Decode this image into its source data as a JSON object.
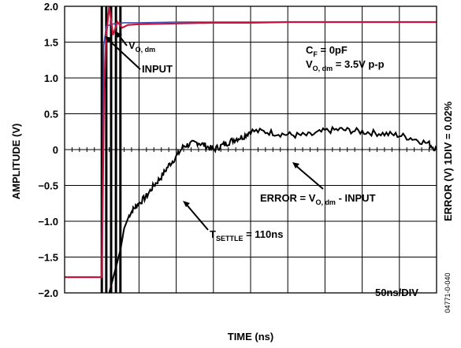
{
  "chart_data": {
    "type": "line",
    "xlabel": "TIME (ns)",
    "ylabel": "AMPLITUDE (V)",
    "y2label": "ERROR (V) 1DIV = 0.02%",
    "ylim": [
      -2.0,
      2.0
    ],
    "x_divisions": 10,
    "x_scale_label": "50ns/DIV",
    "yticks": [
      "2.0",
      "1.5",
      "1.0",
      "0.5",
      "0",
      "−0.5",
      "−1.0",
      "−1.5",
      "−2.0"
    ],
    "grid": true,
    "colors": {
      "input": "#3a4fb0",
      "vo": "#c8143c",
      "error": "#000000",
      "grid": "#000000"
    },
    "series": [
      {
        "name": "INPUT",
        "x_div": [
          0,
          0.8,
          1.0,
          1.05,
          1.12,
          1.25,
          1.4,
          1.6,
          2.0,
          3,
          4,
          5,
          6,
          7,
          8,
          9,
          10
        ],
        "values": [
          -1.78,
          -1.78,
          -1.78,
          1.45,
          1.72,
          1.75,
          1.76,
          1.77,
          1.77,
          1.78,
          1.78,
          1.78,
          1.78,
          1.78,
          1.78,
          1.78,
          1.78
        ]
      },
      {
        "name": "V_O,dm",
        "x_div": [
          0,
          0.8,
          1.0,
          1.06,
          1.12,
          1.2,
          1.3,
          1.42,
          1.55,
          1.7,
          2.0,
          3,
          4,
          5,
          6,
          7,
          8,
          9,
          10
        ],
        "values": [
          -1.78,
          -1.78,
          -1.78,
          0.8,
          1.6,
          2.0,
          1.6,
          1.78,
          1.7,
          1.74,
          1.75,
          1.76,
          1.77,
          1.77,
          1.78,
          1.78,
          1.78,
          1.78,
          1.78
        ]
      },
      {
        "name": "ERROR = V_O,dm - INPUT",
        "x_div": [
          1.2,
          1.5,
          1.6,
          1.75,
          1.9,
          2.0,
          2.2,
          2.4,
          2.6,
          2.8,
          3.0,
          3.2,
          3.4,
          3.6,
          3.8,
          4.0,
          4.2,
          4.4,
          4.6,
          4.8,
          5.0,
          5.4,
          5.8,
          6.2,
          6.6,
          7.0,
          7.4,
          7.8,
          8.2,
          8.6,
          9.0,
          9.4,
          9.8,
          10.0
        ],
        "values": [
          -2.0,
          -1.4,
          -1.1,
          -0.9,
          -0.8,
          -0.75,
          -0.65,
          -0.5,
          -0.38,
          -0.22,
          -0.1,
          0.05,
          0.08,
          0.1,
          0.05,
          0.0,
          0.05,
          0.1,
          0.15,
          0.18,
          0.26,
          0.25,
          0.22,
          0.2,
          0.2,
          0.26,
          0.28,
          0.26,
          0.24,
          0.22,
          0.2,
          0.15,
          0.08,
          0.0
        ]
      }
    ],
    "annotations": {
      "vo_label_main": "V",
      "vo_label_sub": "O, dm",
      "input_label": "INPUT",
      "cf_main": "C",
      "cf_sub": "F",
      "cf_rest": " = 0pF",
      "vo_p_main": "V",
      "vo_p_sub": "O, dm",
      "vo_p_rest": " = 3.5V p-p",
      "error_pre": "ERROR = V",
      "error_sub": "O, dm",
      "error_post": " - INPUT",
      "tsettle_main": "T",
      "tsettle_sub": "SETTLE",
      "tsettle_rest": " = 110ns",
      "timebase": "50ns/DIV",
      "figure_code": "04771-0-040"
    }
  }
}
